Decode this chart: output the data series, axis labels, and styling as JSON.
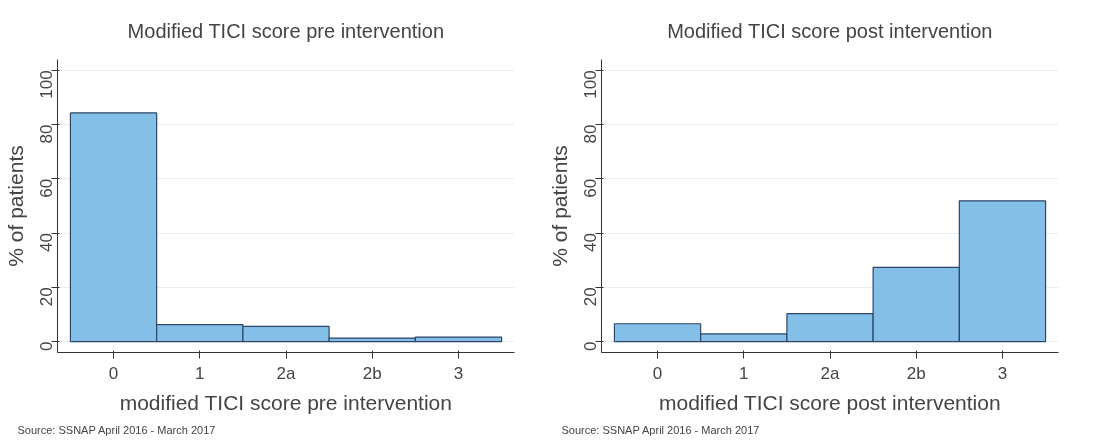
{
  "chart_data": [
    {
      "type": "bar",
      "title": "Modified TICI score pre intervention",
      "xlabel": "modified TICI score pre intervention",
      "ylabel": "% of patients",
      "categories": [
        "0",
        "1",
        "2a",
        "2b",
        "3"
      ],
      "values": [
        84.3,
        6.3,
        5.6,
        1.3,
        1.7
      ],
      "color": "#84bfe8",
      "ylim": [
        -4,
        104
      ],
      "yticks": [
        0,
        20,
        40,
        60,
        80,
        100
      ],
      "grid": "y",
      "annotations": [
        "Source: SSNAP April 2016 - March 2017"
      ]
    },
    {
      "type": "bar",
      "title": "Modified TICI score post intervention",
      "xlabel": "modified TICI score post intervention",
      "ylabel": "% of patients",
      "categories": [
        "0",
        "1",
        "2a",
        "2b",
        "3"
      ],
      "values": [
        6.6,
        2.9,
        10.3,
        27.4,
        51.9
      ],
      "color": "#84bfe8",
      "ylim": [
        -4,
        104
      ],
      "yticks": [
        0,
        20,
        40,
        60,
        80,
        100
      ],
      "grid": "y",
      "annotations": [
        "Source: SSNAP April 2016 - March 2017"
      ]
    }
  ]
}
